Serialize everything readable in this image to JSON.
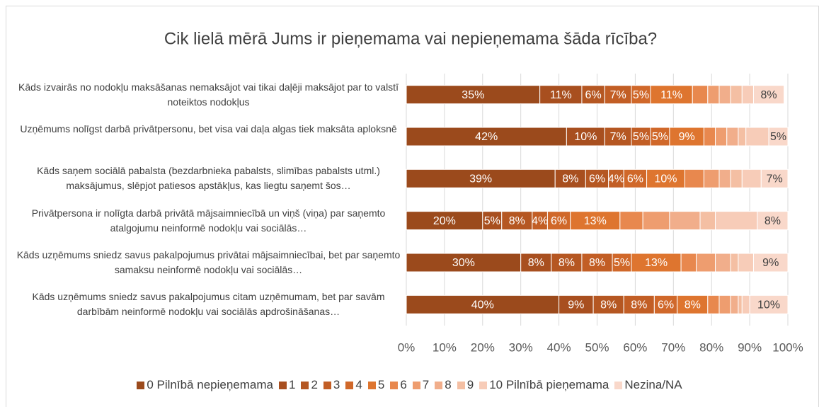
{
  "chart_data": {
    "type": "stacked-bar-horizontal",
    "title": "Cik lielā mērā Jums ir pieņemama vai nepieņemama šāda rīcība?",
    "categories": [
      "Kāds izvairās no nodokļu maksāšanas nemaksājot vai tikai daļēji maksājot par to valstī noteiktos nodokļus",
      "Uzņēmums nolīgst darbā privātpersonu, bet visa vai daļa algas tiek maksāta aploksnē",
      "Kāds saņem sociālā pabalsta (bezdarbnieka pabalsts, slimības pabalsts utml.) maksājumus, slēpjot patiesos apstākļus, kas liegtu saņemt šos…",
      "Privātpersona ir nolīgta darbā privātā mājsaimniecībā un viņš (viņa) par saņemto atalgojumu neinformē nodokļu vai sociālās…",
      "Kāds uzņēmums sniedz savus pakalpojumus privātai mājsaimniecībai, bet par saņemto samaksu neinformē nodokļu vai sociālās…",
      "Kāds uzņēmums sniedz savus pakalpojumus citam uzņēmumam, bet par savām darbībām neinformē nodokļu vai sociālās apdrošināšanas…"
    ],
    "series": [
      {
        "name": "0 Pilnībā nepieņemama",
        "color": "#9b4a1c",
        "values": [
          35,
          42,
          39,
          20,
          30,
          40
        ],
        "value_labels": [
          "35%",
          "42%",
          "39%",
          "20%",
          "30%",
          "40%"
        ]
      },
      {
        "name": "1",
        "color": "#a84f1f",
        "values": [
          11,
          10,
          8,
          5,
          8,
          9
        ],
        "value_labels": [
          "11%",
          "10%",
          "8%",
          "5%",
          "8%",
          "9%"
        ]
      },
      {
        "name": "2",
        "color": "#b55722",
        "values": [
          6,
          7,
          6,
          8,
          8,
          8
        ],
        "value_labels": [
          "6%",
          "7%",
          "6%",
          "8%",
          "8%",
          "8%"
        ]
      },
      {
        "name": "3",
        "color": "#c25e25",
        "values": [
          7,
          5,
          4,
          4,
          8,
          8
        ],
        "value_labels": [
          "7%",
          "5%",
          "4%",
          "4%",
          "8%",
          "8%"
        ]
      },
      {
        "name": "4",
        "color": "#d0682a",
        "values": [
          5,
          5,
          6,
          6,
          5,
          6
        ],
        "value_labels": [
          "5%",
          "5%",
          "6%",
          "6%",
          "5%",
          "6%"
        ]
      },
      {
        "name": "5",
        "color": "#de752f",
        "values": [
          11,
          9,
          10,
          13,
          13,
          8
        ],
        "value_labels": [
          "11%",
          "9%",
          "10%",
          "13%",
          "13%",
          "8%"
        ]
      },
      {
        "name": "6",
        "color": "#e8884e",
        "values": [
          4,
          3,
          5,
          6,
          4,
          3
        ]
      },
      {
        "name": "7",
        "color": "#ee9d6f",
        "values": [
          3,
          3,
          4,
          7,
          5,
          3
        ]
      },
      {
        "name": "8",
        "color": "#f1ae8b",
        "values": [
          3,
          3,
          3,
          8,
          4,
          2
        ]
      },
      {
        "name": "9",
        "color": "#f4bfa3",
        "values": [
          3,
          2,
          3,
          4,
          2,
          1
        ]
      },
      {
        "name": "10 Pilnībā pieņemama",
        "color": "#f7ccb8",
        "values": [
          3,
          6,
          5,
          11,
          4,
          2
        ]
      },
      {
        "name": "Nezina/NA",
        "color": "#f9d8ca",
        "values": [
          8,
          5,
          7,
          8,
          9,
          10
        ],
        "value_labels": [
          "8%",
          "5%",
          "7%",
          "8%",
          "9%",
          "10%"
        ]
      }
    ],
    "xlim": [
      0,
      100
    ],
    "xticks": [
      {
        "value": 0,
        "label": "0%"
      },
      {
        "value": 10,
        "label": "10%"
      },
      {
        "value": 20,
        "label": "20%"
      },
      {
        "value": 30,
        "label": "30%"
      },
      {
        "value": 40,
        "label": "40%"
      },
      {
        "value": 50,
        "label": "50%"
      },
      {
        "value": 60,
        "label": "60%"
      },
      {
        "value": 70,
        "label": "70%"
      },
      {
        "value": 80,
        "label": "80%"
      },
      {
        "value": 90,
        "label": "90%"
      },
      {
        "value": 100,
        "label": "100%"
      }
    ],
    "grid": true
  }
}
